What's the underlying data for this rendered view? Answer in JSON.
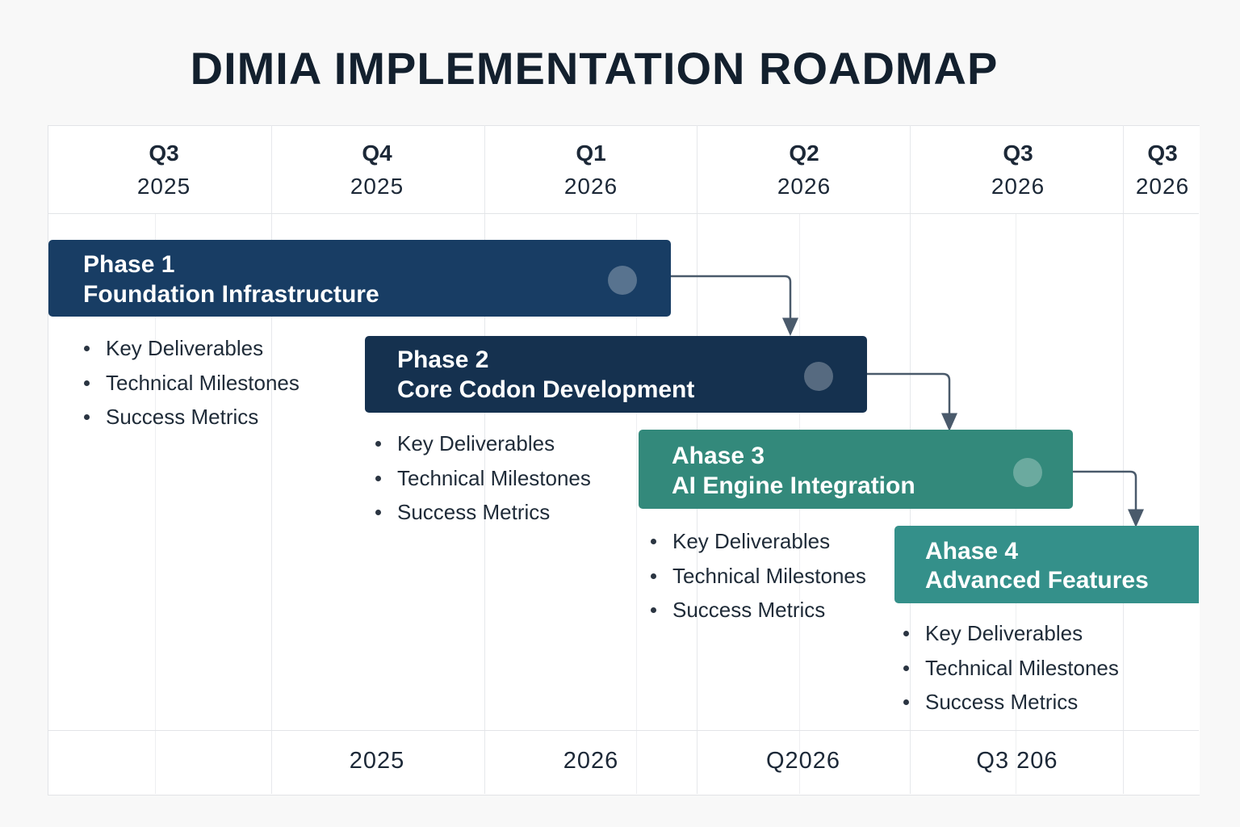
{
  "title": "DIMIA IMPLEMENTATION ROADMAP",
  "quarters": [
    {
      "q": "Q3",
      "y": "2025"
    },
    {
      "q": "Q4",
      "y": "2025"
    },
    {
      "q": "Q1",
      "y": "2026"
    },
    {
      "q": "Q2",
      "y": "2026"
    },
    {
      "q": "Q3",
      "y": "2026"
    },
    {
      "q": "Q3",
      "y": "2026"
    }
  ],
  "phases": [
    {
      "name": "Phase 1",
      "title": "Foundation Infrastructure",
      "color": "#183d64",
      "items": [
        "Key Deliverables",
        "Technical Milestones",
        "Success Metrics"
      ]
    },
    {
      "name": "Phase 2",
      "title": "Core Codon Development",
      "color": "#15314f",
      "items": [
        "Key Deliverables",
        "Technical Milestones",
        "Success Metrics"
      ]
    },
    {
      "name": "Ahase 3",
      "title": "AI Engine Integration",
      "color": "#33897b",
      "items": [
        "Key Deliverables",
        "Technical Milestones",
        "Success Metrics"
      ]
    },
    {
      "name": "Ahase 4",
      "title": "Advanced Features",
      "color": "#34908a",
      "items": [
        "Key Deliverables",
        "Technical Milestones",
        "Success Metrics"
      ]
    }
  ],
  "footer": [
    "2025",
    "2026",
    "Q2026",
    "Q3 206"
  ],
  "colors": {
    "connector": "#4a5a6b",
    "grid": "#e6e8eb"
  }
}
